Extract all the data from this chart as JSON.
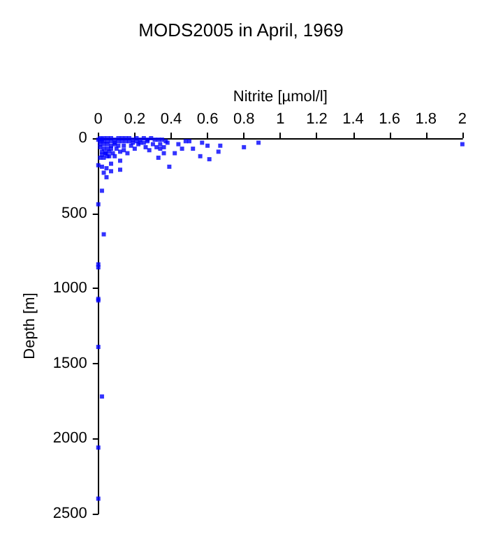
{
  "chart_data": {
    "type": "scatter",
    "title": "MODS2005 in April, 1969",
    "xlabel": "Nitrite [µmol/l]",
    "ylabel": "Depth [m]",
    "xlim": [
      0,
      2
    ],
    "xticks": [
      0,
      0.2,
      0.4,
      0.6,
      0.8,
      1,
      1.2,
      1.4,
      1.6,
      1.8,
      2
    ],
    "ylim": [
      2500,
      0
    ],
    "yticks": [
      0,
      500,
      1000,
      1500,
      2000,
      2500
    ],
    "grid": false,
    "marker": "square",
    "series": [
      {
        "color": "#0000ff",
        "x": [
          2.0,
          0.88,
          0.8,
          0.66,
          0.67,
          0.6,
          0.61,
          0.56,
          0.57,
          0.52,
          0.5,
          0.48,
          0.46,
          0.44,
          0.42,
          0.39,
          0.33,
          0.36,
          0,
          0.02,
          0.03,
          0.045,
          0.045,
          0.07,
          0.07,
          0.12,
          0.12,
          0.02,
          0,
          0.03,
          0,
          0,
          0,
          0,
          0,
          0.02,
          0,
          0,
          0,
          0.01,
          0.02,
          0.03,
          0.05,
          0.07,
          0.09,
          0.11,
          0.13,
          0.15,
          0.17,
          0.19,
          0.21,
          0.23,
          0.25,
          0.27,
          0.29,
          0.31,
          0.33,
          0.35,
          0.37,
          0.01,
          0.03,
          0.05,
          0.07,
          0.09,
          0.11,
          0.13,
          0.15,
          0.17,
          0.19,
          0.21,
          0.23,
          0.25,
          0.27,
          0.3,
          0.34,
          0.38,
          0.01,
          0.03,
          0.05,
          0.07,
          0.09,
          0.11,
          0.14,
          0.18,
          0.22,
          0.26,
          0.32,
          0.36,
          0.01,
          0.03,
          0.05,
          0.07,
          0.1,
          0.14,
          0.2,
          0.28,
          0.34,
          0.02,
          0.04,
          0.06,
          0.08,
          0.12,
          0.16,
          0.02,
          0.04,
          0.06,
          0.09,
          0.01,
          0.03,
          0.05
        ],
        "values": [
          40,
          30,
          60,
          90,
          50,
          50,
          140,
          120,
          30,
          70,
          20,
          20,
          70,
          40,
          100,
          190,
          130,
          100,
          180,
          190,
          230,
          260,
          200,
          220,
          170,
          210,
          150,
          350,
          440,
          640,
          840,
          860,
          1080,
          1070,
          1390,
          1720,
          2060,
          2400,
          10,
          0,
          10,
          0,
          0,
          0,
          10,
          0,
          0,
          0,
          0,
          10,
          0,
          10,
          0,
          10,
          0,
          10,
          10,
          10,
          20,
          20,
          20,
          20,
          20,
          30,
          20,
          20,
          20,
          20,
          30,
          20,
          30,
          30,
          20,
          40,
          40,
          30,
          40,
          40,
          40,
          50,
          40,
          50,
          50,
          50,
          40,
          60,
          60,
          60,
          60,
          70,
          70,
          70,
          70,
          80,
          70,
          80,
          70,
          90,
          100,
          90,
          100,
          90,
          100,
          110,
          100,
          120,
          120,
          130,
          130,
          120
        ]
      }
    ]
  }
}
